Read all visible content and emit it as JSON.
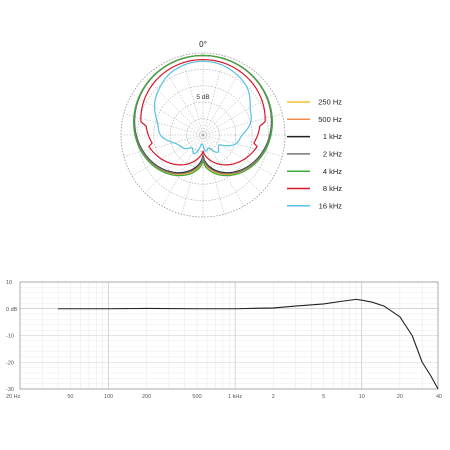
{
  "chart_data": [
    {
      "type": "polar",
      "angle_label": "0°",
      "ring_label": "5 dB",
      "legend_placement": "right",
      "series": [
        {
          "name": "250 Hz",
          "color": "#f2c230",
          "shape": "cardioid",
          "rear": 0.3
        },
        {
          "name": "500 Hz",
          "color": "#f28c4a",
          "shape": "cardioid",
          "rear": 0.28
        },
        {
          "name": "1 kHz",
          "color": "#222222",
          "shape": "cardioid",
          "rear": 0.25
        },
        {
          "name": "2 kHz",
          "color": "#777777",
          "shape": "cardioid",
          "rear": 0.27
        },
        {
          "name": "4 kHz",
          "color": "#3cab3c",
          "shape": "cardioid",
          "rear": 0.32
        },
        {
          "name": "8 kHz",
          "color": "#d7192a",
          "shape": "narrow",
          "rear": 0.45
        },
        {
          "name": "16 kHz",
          "color": "#56c1e6",
          "shape": "lobed",
          "rear": 0.3
        }
      ]
    },
    {
      "type": "line",
      "x_scale": "log",
      "xlim": [
        20,
        40000
      ],
      "ylim": [
        -30,
        10
      ],
      "x_ticks": [
        20,
        50,
        100,
        200,
        500,
        1000,
        2000,
        5000,
        10000,
        20000,
        40000
      ],
      "x_tick_labels": [
        "20 Hz",
        "50",
        "100",
        "200",
        "500",
        "1 kHz",
        "2",
        "5",
        "10",
        "20",
        "40"
      ],
      "y_ticks": [
        10,
        0,
        -10,
        -20,
        -30
      ],
      "y_tick_labels": [
        "10",
        "0 dB",
        "-10",
        "-20",
        "-30"
      ],
      "grid": true,
      "series": [
        {
          "color": "#222222",
          "x": [
            40,
            100,
            200,
            500,
            1000,
            2000,
            3000,
            5000,
            7000,
            9000,
            10000,
            12000,
            15000,
            20000,
            25000,
            30000,
            35000,
            40000
          ],
          "y": [
            0,
            0,
            0.1,
            0,
            0,
            0.3,
            1,
            1.8,
            2.8,
            3.5,
            3.2,
            2.5,
            1,
            -3,
            -10,
            -20,
            -25,
            -30
          ]
        }
      ]
    }
  ]
}
